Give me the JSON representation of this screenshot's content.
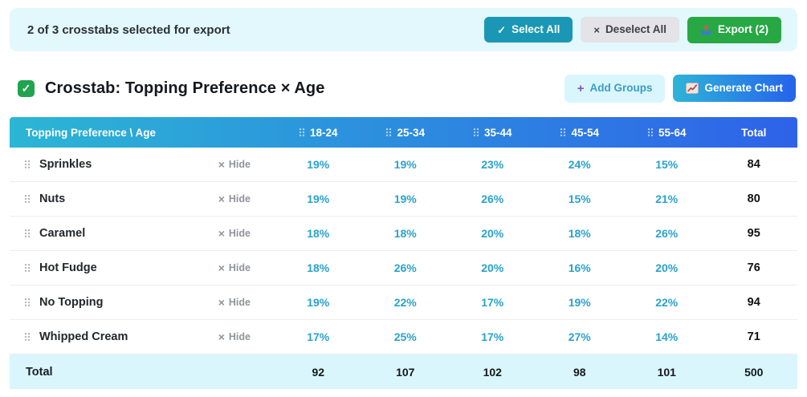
{
  "topbar": {
    "status": "2 of 3 crosstabs selected for export",
    "select_all_label": "Select All",
    "deselect_all_label": "Deselect All",
    "export_label": "Export (2)"
  },
  "title": {
    "text": "Crosstab: Topping Preference × Age",
    "add_groups_label": "Add Groups",
    "generate_chart_label": "Generate Chart"
  },
  "icons": {
    "check_glyph": "✓",
    "x_glyph": "×",
    "plus_glyph": "+",
    "export_icon": "outbox-tray-icon",
    "chart_icon": "trend-chart-icon",
    "drag_icon": "drag-handle-icon"
  },
  "colors": {
    "topbar_bg": "#e2f8fd",
    "select_all_bg": "#1a97b5",
    "deselect_bg": "#e3e3e8",
    "export_bg": "#28a745",
    "add_groups_bg": "#d9f6fd",
    "header_gradient_left": "#2bb6d4",
    "header_gradient_right": "#2e62e9",
    "percent_text": "#2aa2cc",
    "total_row_bg": "#d8f6fc",
    "checkbox_green": "#21a350"
  },
  "table": {
    "corner_header": "Topping Preference \\ Age",
    "columns": [
      "18-24",
      "25-34",
      "35-44",
      "45-54",
      "55-64"
    ],
    "total_header": "Total",
    "hide_label": "Hide",
    "rows": [
      {
        "label": "Sprinkles",
        "values": [
          "19%",
          "19%",
          "23%",
          "24%",
          "15%"
        ],
        "total": "84"
      },
      {
        "label": "Nuts",
        "values": [
          "19%",
          "19%",
          "26%",
          "15%",
          "21%"
        ],
        "total": "80"
      },
      {
        "label": "Caramel",
        "values": [
          "18%",
          "18%",
          "20%",
          "18%",
          "26%"
        ],
        "total": "95"
      },
      {
        "label": "Hot Fudge",
        "values": [
          "18%",
          "26%",
          "20%",
          "16%",
          "20%"
        ],
        "total": "76"
      },
      {
        "label": "No Topping",
        "values": [
          "19%",
          "22%",
          "17%",
          "19%",
          "22%"
        ],
        "total": "94"
      },
      {
        "label": "Whipped Cream",
        "values": [
          "17%",
          "25%",
          "17%",
          "27%",
          "14%"
        ],
        "total": "71"
      }
    ],
    "total_row": {
      "label": "Total",
      "values": [
        "92",
        "107",
        "102",
        "98",
        "101"
      ],
      "total": "500"
    }
  }
}
